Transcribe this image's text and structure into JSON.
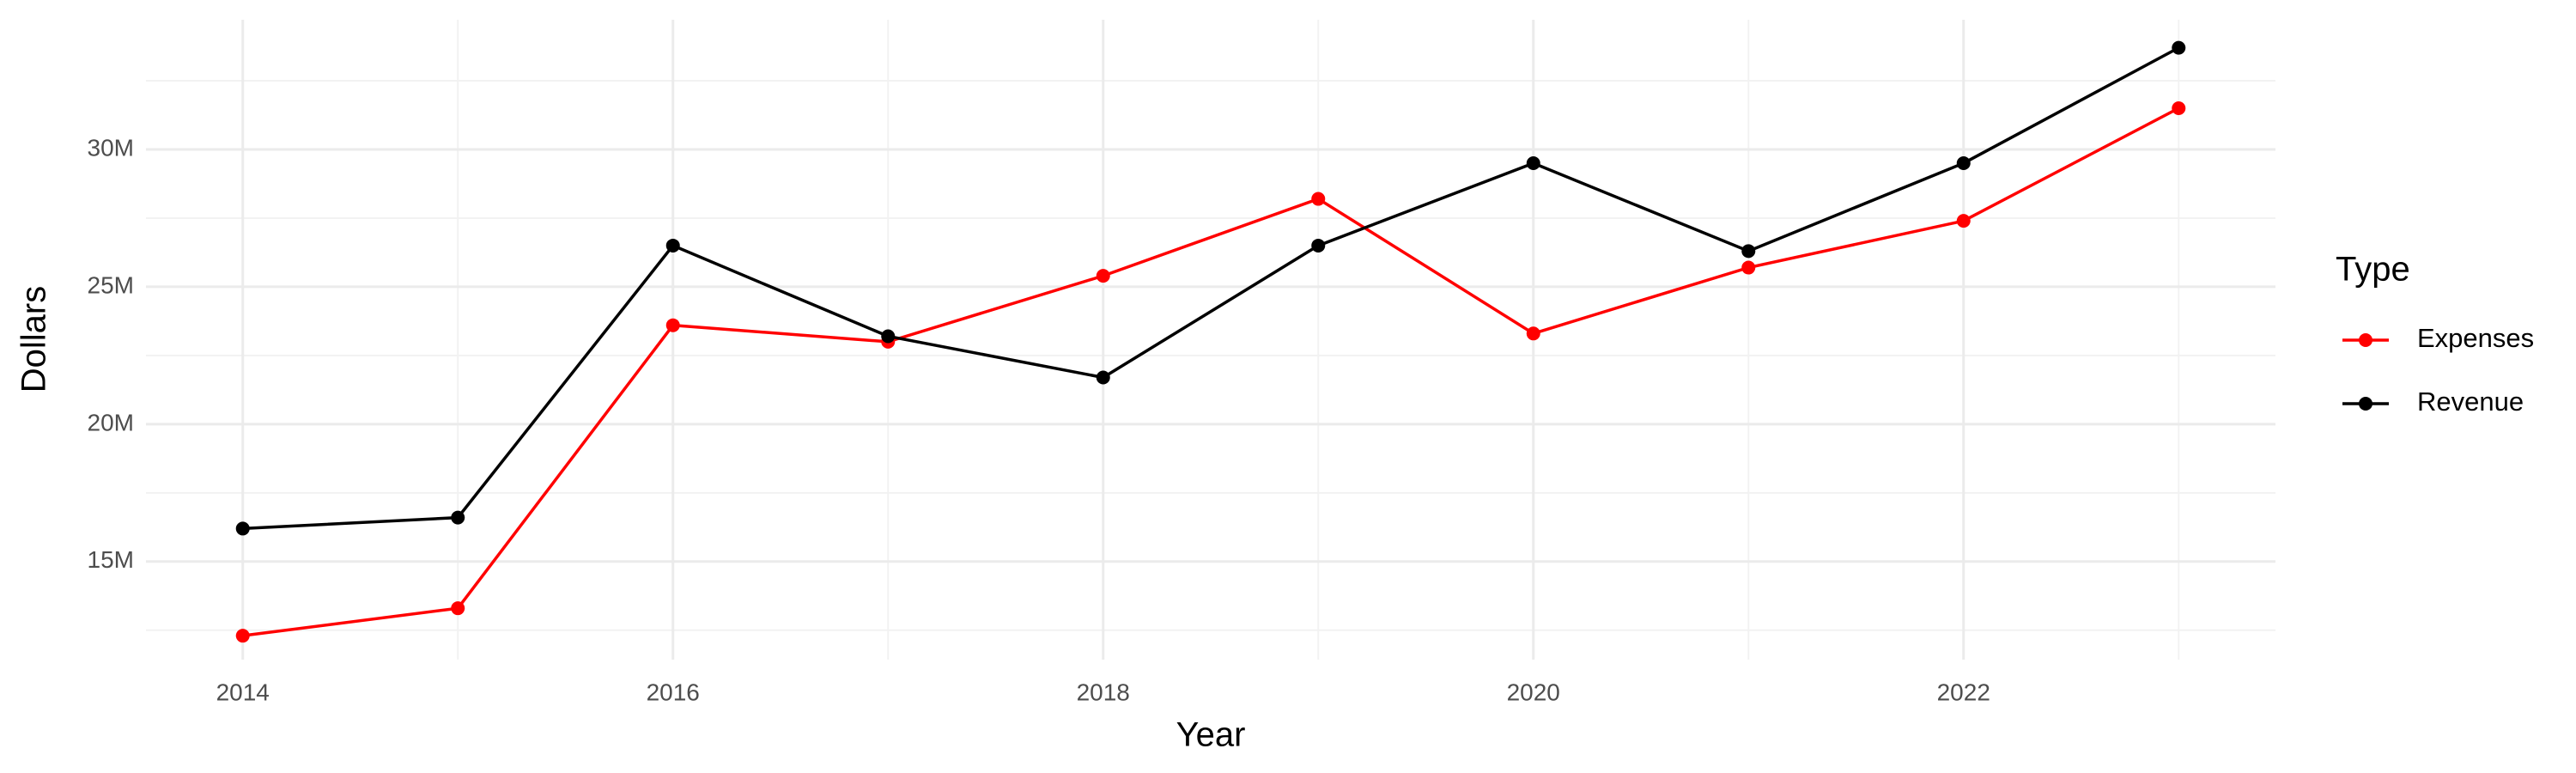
{
  "chart_data": {
    "type": "line",
    "x_label": "Year",
    "y_label": "Dollars",
    "x": [
      2014,
      2015,
      2016,
      2017,
      2018,
      2019,
      2020,
      2021,
      2022,
      2023
    ],
    "series": [
      {
        "name": "Expenses",
        "color": "#ff0000",
        "values": [
          12300000,
          13300000,
          23600000,
          23000000,
          25400000,
          28200000,
          23300000,
          25700000,
          27400000,
          31500000
        ]
      },
      {
        "name": "Revenue",
        "color": "#000000",
        "values": [
          16200000,
          16600000,
          26500000,
          23200000,
          21700000,
          26500000,
          29500000,
          26300000,
          29500000,
          33700000
        ]
      }
    ],
    "xlim": [
      2013.55,
      2023.45
    ],
    "xticks": [
      2014,
      2016,
      2018,
      2020,
      2022
    ],
    "x_minor_ticks": [
      2015,
      2017,
      2019,
      2021,
      2023
    ],
    "ylim": [
      11430000,
      34720000
    ],
    "yticks": [
      {
        "value": 15000000,
        "label": "15M"
      },
      {
        "value": 20000000,
        "label": "20M"
      },
      {
        "value": 25000000,
        "label": "25M"
      },
      {
        "value": 30000000,
        "label": "30M"
      }
    ],
    "y_minor_ticks": [
      12500000,
      17500000,
      22500000,
      27500000,
      32500000
    ],
    "grid": true,
    "legend_title": "Type",
    "legend_position": "right"
  }
}
